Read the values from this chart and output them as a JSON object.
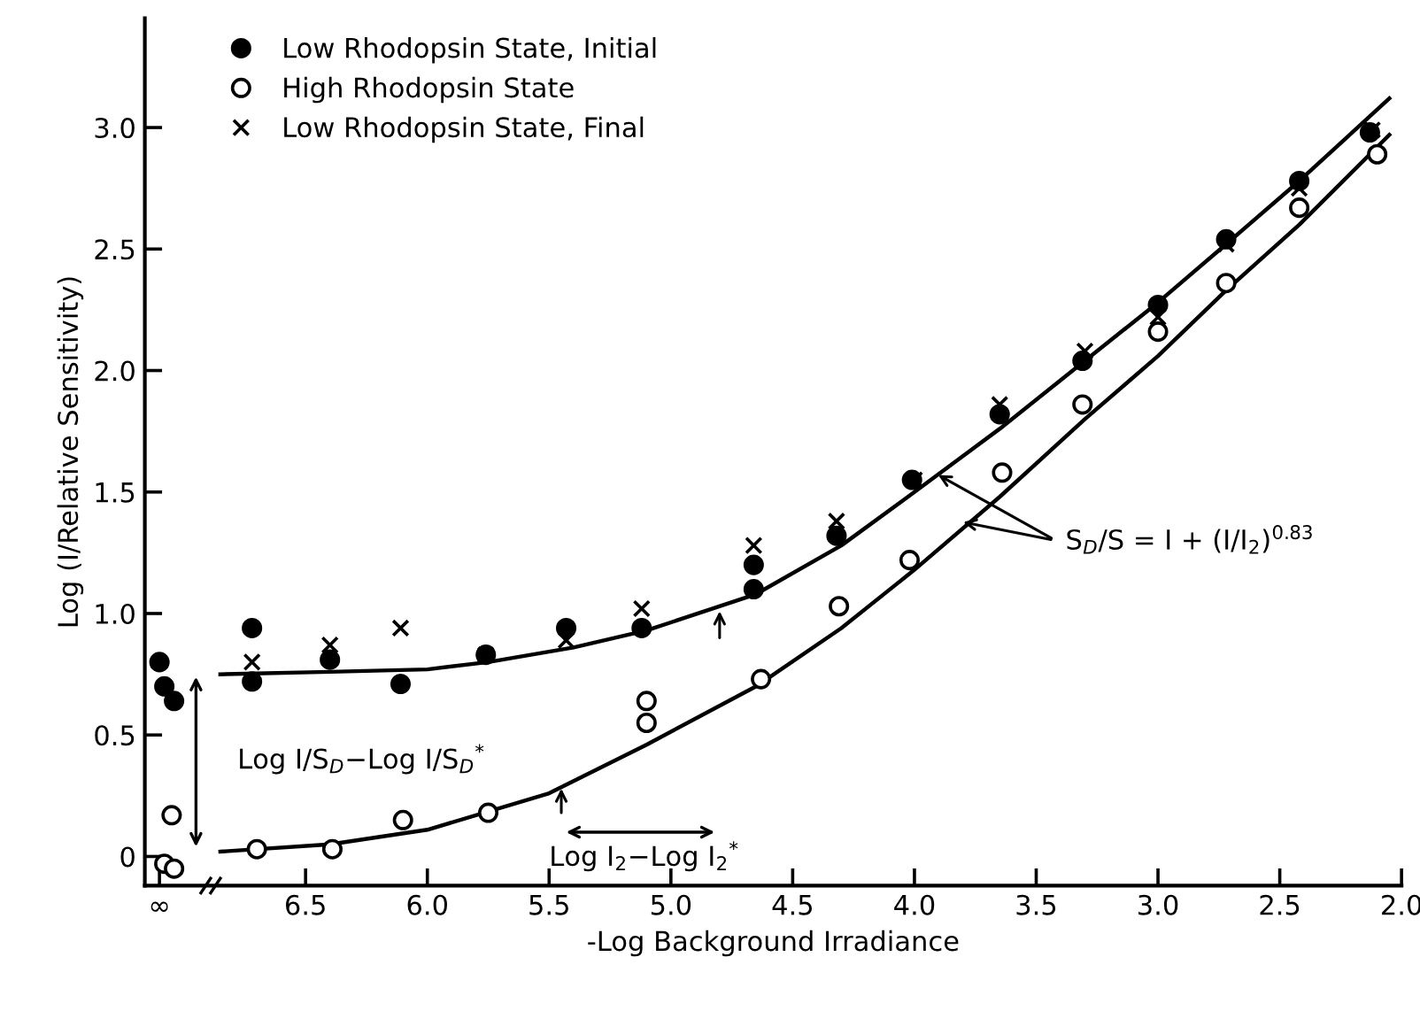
{
  "chart_data": {
    "type": "scatter",
    "xlabel": "-Log Background Irradiance",
    "ylabel": "Log (I/Relative Sensitivity)",
    "xlim": [
      7.16,
      2.0
    ],
    "ylim": [
      -0.12,
      3.45
    ],
    "xticks": [
      {
        "value": 7.1,
        "label": "∞"
      },
      6.5,
      {
        "value": 6,
        "label": "6.0"
      },
      5.5,
      {
        "value": 5,
        "label": "5.0"
      },
      4.5,
      {
        "value": 4,
        "label": "4.0"
      },
      3.5,
      {
        "value": 3,
        "label": "3.0"
      },
      2.5,
      {
        "value": 2,
        "label": "2.0"
      }
    ],
    "yticks": [
      0,
      0.5,
      {
        "value": 1,
        "label": "1.0"
      },
      1.5,
      {
        "value": 2,
        "label": "2.0"
      },
      2.5,
      {
        "value": 3,
        "label": "3.0"
      }
    ],
    "grid": false,
    "legend": "top left",
    "series": [
      {
        "name": "Low Rhodopsin State, Initial",
        "marker": "circle",
        "color": "#000000",
        "x": [
          7.1,
          7.08,
          7.04,
          6.72,
          6.72,
          6.4,
          6.11,
          5.76,
          5.43,
          5.12,
          4.66,
          4.66,
          4.32,
          4.01,
          3.65,
          3.31,
          3.0,
          2.72,
          2.42,
          2.13
        ],
        "values": [
          0.8,
          0.7,
          0.64,
          0.94,
          0.72,
          0.81,
          0.71,
          0.83,
          0.94,
          0.94,
          1.1,
          1.2,
          1.32,
          1.55,
          1.82,
          2.04,
          2.27,
          2.54,
          2.78,
          2.98
        ]
      },
      {
        "name": "High Rhodopsin State",
        "marker": "circle",
        "color": "#ffffff",
        "x": [
          7.05,
          7.08,
          7.04,
          6.7,
          6.39,
          6.1,
          5.75,
          5.1,
          5.1,
          4.63,
          4.31,
          4.02,
          3.64,
          3.31,
          3.0,
          2.72,
          2.42,
          2.1
        ],
        "values": [
          0.17,
          -0.03,
          -0.05,
          0.03,
          0.03,
          0.15,
          0.18,
          0.64,
          0.55,
          0.73,
          1.03,
          1.22,
          1.58,
          1.86,
          2.16,
          2.36,
          2.67,
          2.89
        ]
      },
      {
        "name": "Low Rhodopsin State, Final",
        "marker": "cross",
        "color": "#000000",
        "x": [
          6.72,
          6.4,
          6.11,
          5.76,
          5.43,
          5.12,
          4.66,
          4.32,
          4.0,
          3.65,
          3.3,
          3.0,
          2.72,
          2.42,
          2.12
        ],
        "values": [
          0.8,
          0.87,
          0.94,
          0.83,
          0.89,
          1.02,
          1.28,
          1.38,
          1.55,
          1.86,
          2.08,
          2.22,
          2.52,
          2.75,
          2.99
        ]
      },
      {
        "type": "line",
        "marker": "none",
        "color": "#000000",
        "x": [
          6.85,
          6.4,
          6.0,
          5.75,
          5.4,
          5.1,
          4.65,
          4.3,
          4.0,
          3.65,
          3.3,
          3.0,
          2.72,
          2.42,
          2.05
        ],
        "values": [
          0.75,
          0.76,
          0.77,
          0.8,
          0.86,
          0.93,
          1.08,
          1.28,
          1.5,
          1.76,
          2.04,
          2.28,
          2.52,
          2.78,
          3.12
        ]
      },
      {
        "type": "line",
        "marker": "none",
        "color": "#000000",
        "x": [
          6.85,
          6.4,
          6.0,
          5.5,
          5.1,
          4.65,
          4.3,
          4.0,
          3.65,
          3.3,
          3.0,
          2.72,
          2.42,
          2.05
        ],
        "values": [
          0.02,
          0.05,
          0.11,
          0.26,
          0.46,
          0.7,
          0.94,
          1.18,
          1.48,
          1.8,
          2.06,
          2.33,
          2.6,
          2.97
        ]
      }
    ],
    "annotations": [
      "Log I/S$_{D}$−Log I/S$_{D}$$^{*}$",
      "Log I$_{2}$−Log I$_{2}$$^{*}$",
      {
        "text": "S$_{D}$/S = I + (I/I$_{2}$)$^{0.83}$",
        "x": 3.92,
        "y": 1.58
      }
    ]
  }
}
